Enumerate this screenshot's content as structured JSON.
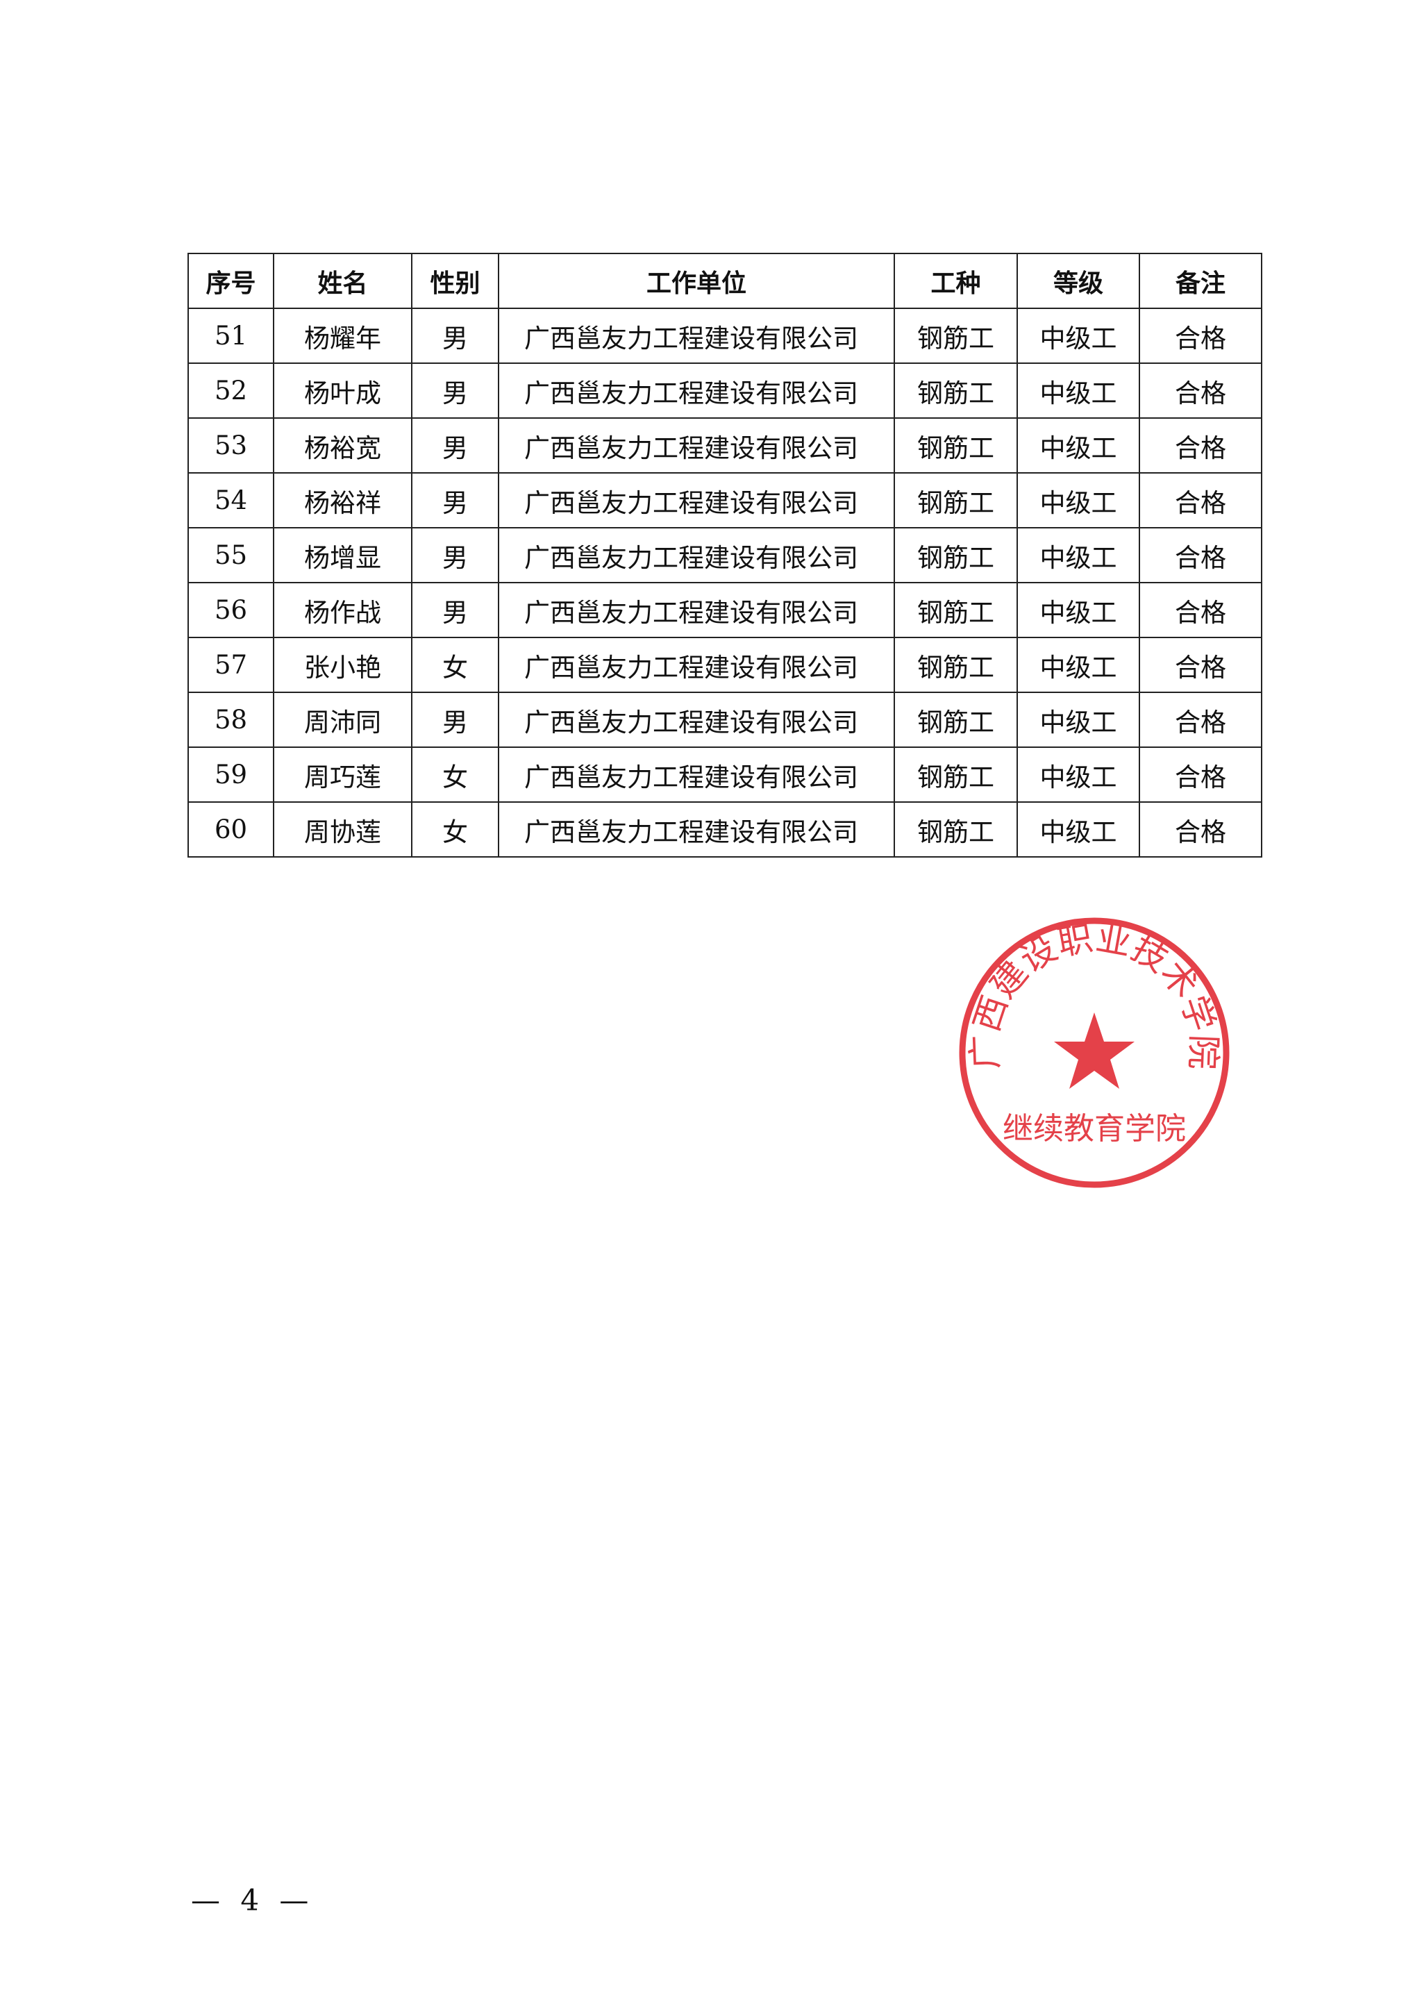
{
  "table": {
    "headers": [
      "序号",
      "姓名",
      "性别",
      "工作单位",
      "工种",
      "等级",
      "备注"
    ],
    "rows": [
      [
        "51",
        "杨耀年",
        "男",
        "广西邕友力工程建设有限公司",
        "钢筋工",
        "中级工",
        "合格"
      ],
      [
        "52",
        "杨叶成",
        "男",
        "广西邕友力工程建设有限公司",
        "钢筋工",
        "中级工",
        "合格"
      ],
      [
        "53",
        "杨裕宽",
        "男",
        "广西邕友力工程建设有限公司",
        "钢筋工",
        "中级工",
        "合格"
      ],
      [
        "54",
        "杨裕祥",
        "男",
        "广西邕友力工程建设有限公司",
        "钢筋工",
        "中级工",
        "合格"
      ],
      [
        "55",
        "杨增显",
        "男",
        "广西邕友力工程建设有限公司",
        "钢筋工",
        "中级工",
        "合格"
      ],
      [
        "56",
        "杨作战",
        "男",
        "广西邕友力工程建设有限公司",
        "钢筋工",
        "中级工",
        "合格"
      ],
      [
        "57",
        "张小艳",
        "女",
        "广西邕友力工程建设有限公司",
        "钢筋工",
        "中级工",
        "合格"
      ],
      [
        "58",
        "周沛同",
        "男",
        "广西邕友力工程建设有限公司",
        "钢筋工",
        "中级工",
        "合格"
      ],
      [
        "59",
        "周巧莲",
        "女",
        "广西邕友力工程建设有限公司",
        "钢筋工",
        "中级工",
        "合格"
      ],
      [
        "60",
        "周协莲",
        "女",
        "广西邕友力工程建设有限公司",
        "钢筋工",
        "中级工",
        "合格"
      ]
    ]
  },
  "stamp": {
    "arc_text": "广西建设职业技术学院",
    "bottom_text": "继续教育学院",
    "color": "#e0202a"
  },
  "page_number": "— 4 —"
}
